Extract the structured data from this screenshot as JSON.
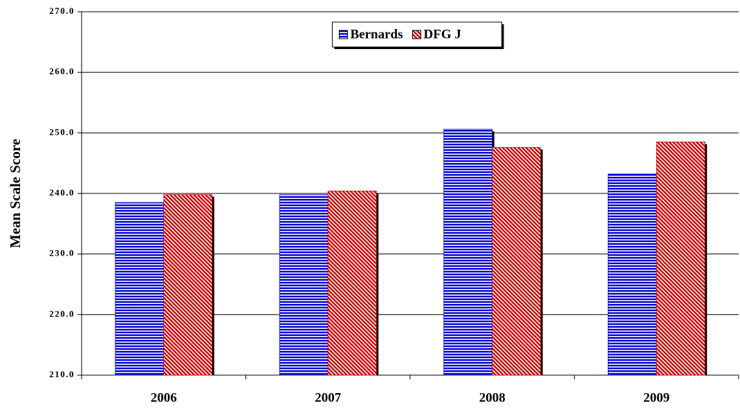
{
  "chart_data": {
    "type": "bar",
    "y_label": "Mean Scale Score",
    "categories": [
      "2006",
      "2007",
      "2008",
      "2009"
    ],
    "series": [
      {
        "name": "Bernards",
        "color": "#0000cc",
        "values": [
          238.5,
          239.8,
          250.6,
          243.2
        ]
      },
      {
        "name": "DFG J",
        "color": "#cc0000",
        "values": [
          239.8,
          240.4,
          247.6,
          248.5
        ]
      }
    ],
    "ylim": [
      210,
      270
    ],
    "yticks": [
      {
        "value": 210,
        "label": "210.0"
      },
      {
        "value": 220,
        "label": "220.0"
      },
      {
        "value": 230,
        "label": "230.0"
      },
      {
        "value": 240,
        "label": "240.0"
      },
      {
        "value": 250,
        "label": "250.0"
      },
      {
        "value": 260,
        "label": "260.0"
      },
      {
        "value": 270,
        "label": "270.0"
      }
    ],
    "grid": true,
    "legend": "top"
  }
}
